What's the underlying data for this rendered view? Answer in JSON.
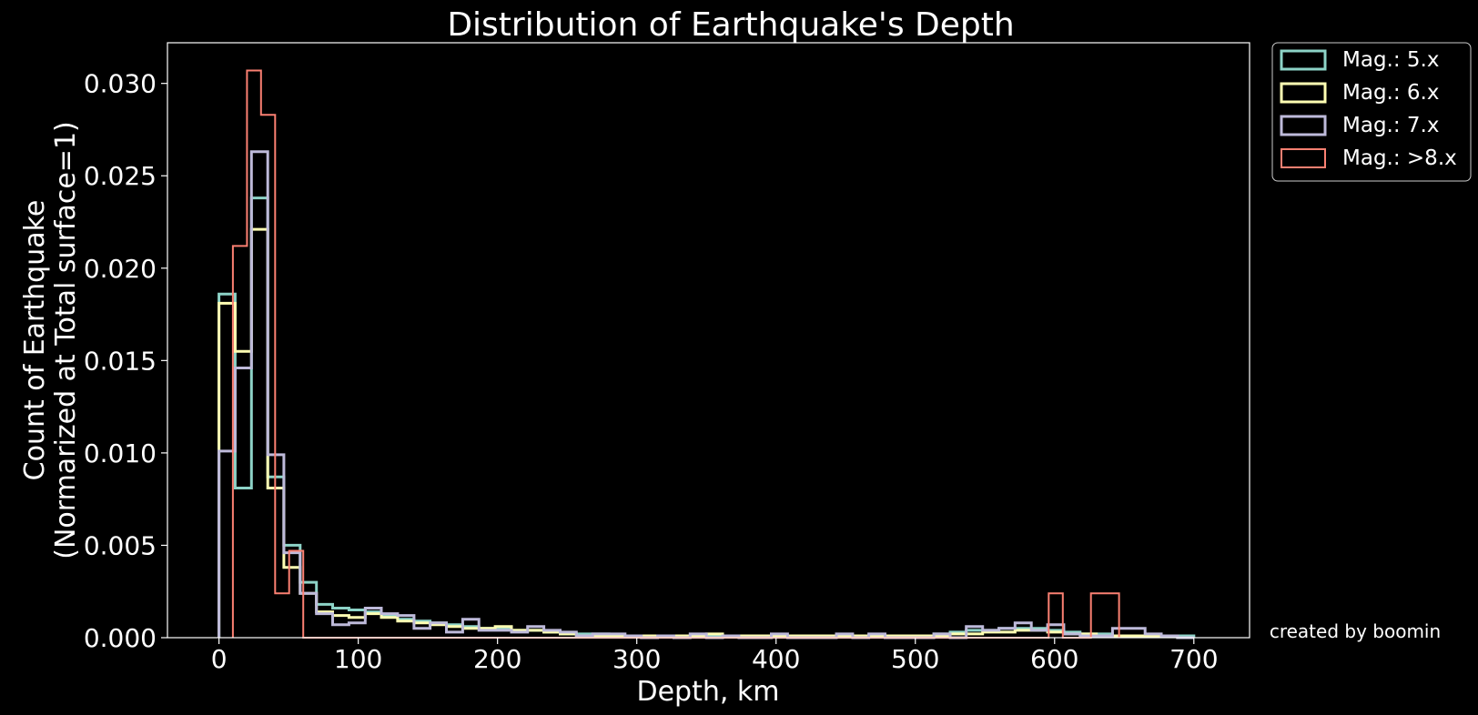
{
  "chart_data": {
    "type": "histogram-step",
    "title": "Distribution of Earthquake's Depth",
    "xlabel": "Depth, km",
    "ylabel_lines": [
      "Count of Earthquake",
      "(Normarized at Total surface=1)"
    ],
    "xlim": [
      -37,
      740
    ],
    "ylim": [
      0,
      0.0322
    ],
    "x_ticks": [
      0,
      100,
      200,
      300,
      400,
      500,
      600,
      700
    ],
    "y_ticks": [
      0.0,
      0.005,
      0.01,
      0.015,
      0.02,
      0.025,
      0.03
    ],
    "y_tick_labels": [
      "0.000",
      "0.005",
      "0.010",
      "0.015",
      "0.020",
      "0.025",
      "0.030"
    ],
    "grid": false,
    "legend_position": "outside-top-right",
    "annotation": "created by boomin",
    "series": [
      {
        "name": "Mag.: 5.x",
        "color": "#8dd3c7",
        "line_width": 3,
        "bins": [
          0,
          11.6,
          23.3,
          35,
          46.6,
          58.3,
          70,
          81.6,
          93.3,
          105,
          116.6,
          128.3,
          140,
          151.6,
          163.3,
          175,
          186.6,
          198.3,
          210,
          221.6,
          233.3,
          245,
          256.6,
          268.3,
          280,
          291.6,
          303.3,
          315,
          326.6,
          338.3,
          350,
          361.6,
          373.3,
          385,
          396.6,
          408.3,
          420,
          431.6,
          443.3,
          455,
          466.6,
          478.3,
          490,
          501.6,
          513.3,
          525,
          536.6,
          548.3,
          560,
          571.6,
          583.3,
          595,
          606.6,
          618.3,
          630,
          641.6,
          653.3,
          665,
          676.6,
          688.3,
          700
        ],
        "values": [
          0.0186,
          0.0081,
          0.0238,
          0.0087,
          0.005,
          0.003,
          0.0018,
          0.0016,
          0.0015,
          0.0014,
          0.0012,
          0.001,
          0.0009,
          0.0008,
          0.0007,
          0.0006,
          0.0005,
          0.0005,
          0.0004,
          0.0004,
          0.0003,
          0.0002,
          0.0002,
          0.0002,
          0.0001,
          0.0001,
          0.0001,
          0.0001,
          0.0001,
          0.0001,
          0.0001,
          0.0001,
          0.0001,
          0.0001,
          0.0001,
          0.0001,
          0.0001,
          0.0001,
          0.0001,
          0.0001,
          0.0001,
          0.0001,
          0.0001,
          0.0001,
          0.0002,
          0.0003,
          0.0004,
          0.0004,
          0.0005,
          0.0005,
          0.0005,
          0.0004,
          0.0003,
          0.0002,
          0.0002,
          0.0001,
          0.0001,
          0.0001,
          0.0001,
          0.0001
        ]
      },
      {
        "name": "Mag.: 6.x",
        "color": "#ffffb3",
        "line_width": 3,
        "bins": [
          0,
          11.6,
          23.3,
          35,
          46.6,
          58.3,
          70,
          81.6,
          93.3,
          105,
          116.6,
          128.3,
          140,
          151.6,
          163.3,
          175,
          186.6,
          198.3,
          210,
          221.6,
          233.3,
          245,
          256.6,
          268.3,
          280,
          291.6,
          303.3,
          315,
          326.6,
          338.3,
          350,
          361.6,
          373.3,
          385,
          396.6,
          408.3,
          420,
          431.6,
          443.3,
          455,
          466.6,
          478.3,
          490,
          501.6,
          513.3,
          525,
          536.6,
          548.3,
          560,
          571.6,
          583.3,
          595,
          606.6,
          618.3,
          630,
          641.6,
          653.3,
          665,
          676.6,
          688.3,
          700
        ],
        "values": [
          0.0181,
          0.0155,
          0.0221,
          0.0081,
          0.0038,
          0.0024,
          0.0014,
          0.0012,
          0.0011,
          0.0013,
          0.0011,
          0.0009,
          0.0008,
          0.0007,
          0.0006,
          0.0005,
          0.0005,
          0.0006,
          0.0004,
          0.0004,
          0.0003,
          0.0002,
          0.0001,
          0.0001,
          0.0001,
          0.0001,
          0.0001,
          0.0001,
          0.0001,
          0.0001,
          0.0002,
          0.0001,
          0.0001,
          0.0001,
          0.0001,
          0.0001,
          0.0001,
          0.0001,
          0.0001,
          0.0001,
          0.0001,
          0.0001,
          0.0001,
          0.0001,
          0.0001,
          0.0002,
          0.0002,
          0.0003,
          0.0003,
          0.0004,
          0.0004,
          0.0003,
          0.0002,
          0.0002,
          0.0001,
          0.0001,
          0.0001,
          0.0001,
          0.0001,
          0.0
        ]
      },
      {
        "name": "Mag.: 7.x",
        "color": "#bebada",
        "line_width": 3,
        "bins": [
          0,
          11.6,
          23.3,
          35,
          46.6,
          58.3,
          70,
          81.6,
          93.3,
          105,
          116.6,
          128.3,
          140,
          151.6,
          163.3,
          175,
          186.6,
          198.3,
          210,
          221.6,
          233.3,
          245,
          256.6,
          268.3,
          280,
          291.6,
          303.3,
          315,
          326.6,
          338.3,
          350,
          361.6,
          373.3,
          385,
          396.6,
          408.3,
          420,
          431.6,
          443.3,
          455,
          466.6,
          478.3,
          490,
          501.6,
          513.3,
          525,
          536.6,
          548.3,
          560,
          571.6,
          583.3,
          595,
          606.6,
          618.3,
          630,
          641.6,
          653.3,
          665,
          676.6,
          688.3,
          700
        ],
        "values": [
          0.0101,
          0.0146,
          0.0263,
          0.0099,
          0.0046,
          0.0024,
          0.0013,
          0.0007,
          0.0008,
          0.0016,
          0.0013,
          0.0012,
          0.0005,
          0.0008,
          0.0003,
          0.001,
          0.0004,
          0.0004,
          0.0003,
          0.0006,
          0.0004,
          0.0003,
          0.0001,
          0.0002,
          0.0002,
          0.0001,
          0.0,
          0.0001,
          0.0,
          0.0002,
          0.0,
          0.0001,
          0.0,
          0.0,
          0.0002,
          0.0,
          0.0,
          0.0,
          0.0002,
          0.0,
          0.0002,
          0.0,
          0.0,
          0.0,
          0.0002,
          0.0,
          0.0006,
          0.0004,
          0.0005,
          0.0008,
          0.0004,
          0.0007,
          0.0002,
          0.0001,
          0.0001,
          0.0005,
          0.0005,
          0.0002,
          0.0001,
          0.0
        ]
      },
      {
        "name": "Mag.: >8.x",
        "color": "#fb8072",
        "line_width": 2,
        "bins": [
          10,
          20.1,
          30.2,
          40.3,
          50.4,
          60.5,
          70.6,
          80.7,
          90.8,
          100.9,
          111,
          121.1,
          131.2,
          141.3,
          151.4,
          161.5,
          171.6,
          181.7,
          191.8,
          201.9,
          212,
          222.1,
          232.2,
          242.3,
          252.4,
          262.5,
          272.6,
          282.7,
          292.8,
          302.9,
          313,
          323.1,
          333.2,
          343.3,
          353.4,
          363.5,
          373.6,
          383.7,
          393.8,
          403.9,
          414,
          424.1,
          434.2,
          444.3,
          454.4,
          464.5,
          474.6,
          484.7,
          494.8,
          504.9,
          515,
          525.1,
          535.2,
          545.3,
          555.4,
          565.5,
          575.6,
          585.7,
          595.8,
          605.9,
          616,
          626.1,
          636.2,
          646.3
        ],
        "values": [
          0.0212,
          0.0307,
          0.0283,
          0.0024,
          0.0047,
          0.0,
          0.0,
          0.0,
          0.0,
          0.0,
          0.0,
          0.0,
          0.0,
          0.0,
          0.0,
          0.0,
          0.0,
          0.0,
          0.0,
          0.0,
          0.0,
          0.0,
          0.0,
          0.0,
          0.0,
          0.0,
          0.0,
          0.0,
          0.0,
          0.0,
          0.0,
          0.0,
          0.0,
          0.0,
          0.0,
          0.0,
          0.0,
          0.0,
          0.0,
          0.0,
          0.0,
          0.0,
          0.0,
          0.0,
          0.0,
          0.0,
          0.0,
          0.0,
          0.0,
          0.0,
          0.0,
          0.0,
          0.0,
          0.0,
          0.0,
          0.0,
          0.0,
          0.0,
          0.0024,
          0.0,
          0.0,
          0.0024,
          0.0024
        ]
      }
    ]
  }
}
